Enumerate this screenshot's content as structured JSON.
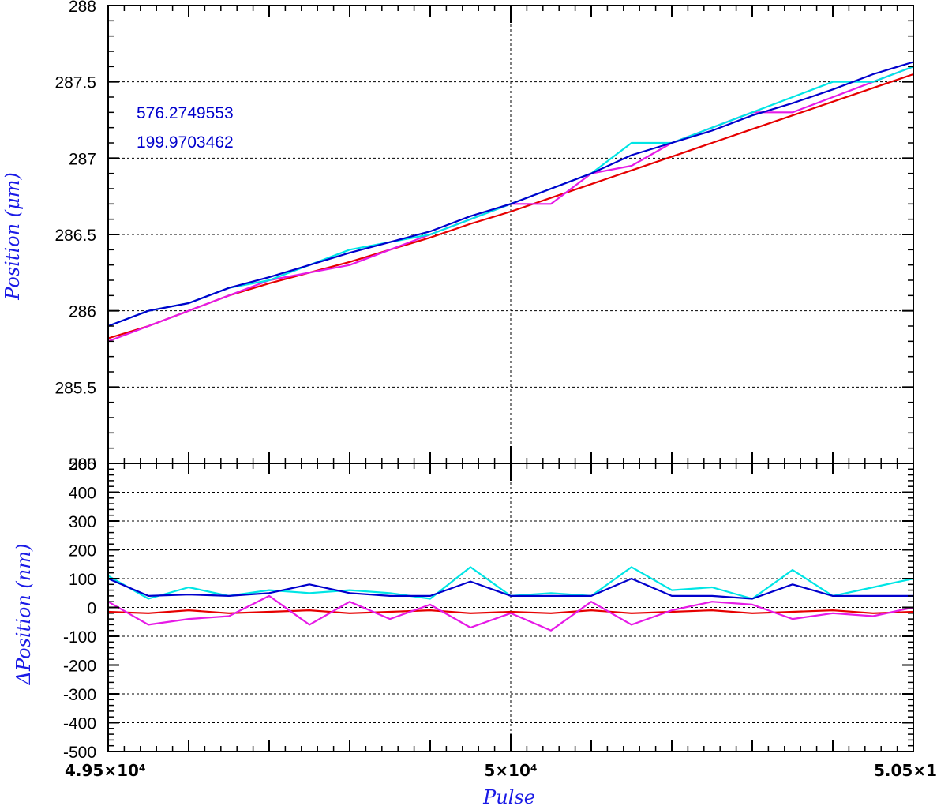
{
  "chart_data": [
    {
      "type": "line",
      "panel": "top",
      "ylabel": "Position (μm)",
      "ylim": [
        285,
        288
      ],
      "yticks": [
        "285",
        "285.5",
        "286",
        "286.5",
        "287",
        "287.5",
        "288"
      ],
      "xlim": [
        49500,
        50500
      ],
      "grid": true,
      "annotations": [
        "576.2749553",
        "199.9703462"
      ],
      "colors": {
        "blue": "#0000cc",
        "cyan": "#00e5e5",
        "magenta": "#e61ae6",
        "red": "#e60000"
      },
      "series": [
        {
          "x": [
            49500,
            49550,
            49600,
            49650,
            49700,
            49750,
            49800,
            49850,
            49900,
            49950,
            50000,
            50050,
            50100,
            50150,
            50200,
            50250,
            50300,
            50350,
            50400,
            50450,
            50500
          ],
          "values": [
            285.9,
            286.0,
            286.05,
            286.15,
            286.22,
            286.3,
            286.38,
            286.45,
            286.52,
            286.62,
            286.7,
            286.8,
            286.9,
            287.02,
            287.1,
            287.18,
            287.28,
            287.36,
            287.45,
            287.55,
            287.63
          ]
        },
        {
          "x": [
            49500,
            49550,
            49600,
            49650,
            49700,
            49750,
            49800,
            49850,
            49900,
            49950,
            50000,
            50050,
            50100,
            50150,
            50200,
            50250,
            50300,
            50350,
            50400,
            50450,
            50500
          ],
          "values": [
            285.9,
            286.0,
            286.05,
            286.15,
            286.2,
            286.3,
            286.4,
            286.45,
            286.5,
            286.6,
            286.7,
            286.8,
            286.9,
            287.1,
            287.1,
            287.2,
            287.3,
            287.4,
            287.5,
            287.5,
            287.6
          ]
        },
        {
          "x": [
            49500,
            49550,
            49600,
            49650,
            49700,
            49750,
            49800,
            49850,
            49900,
            49950,
            50000,
            50050,
            50100,
            50150,
            50200,
            50250,
            50300,
            50350,
            50400,
            50450,
            50500
          ],
          "values": [
            285.8,
            285.9,
            286.0,
            286.1,
            286.2,
            286.25,
            286.3,
            286.4,
            286.5,
            286.6,
            286.7,
            286.7,
            286.9,
            286.95,
            287.1,
            287.2,
            287.3,
            287.3,
            287.4,
            287.5,
            287.6
          ]
        },
        {
          "x": [
            49500,
            49550,
            49600,
            49650,
            49700,
            49750,
            49800,
            49850,
            49900,
            49950,
            50000,
            50050,
            50100,
            50150,
            50200,
            50250,
            50300,
            50350,
            50400,
            50450,
            50500
          ],
          "values": [
            285.82,
            285.9,
            286.0,
            286.1,
            286.18,
            286.25,
            286.32,
            286.4,
            286.48,
            286.57,
            286.65,
            286.74,
            286.83,
            286.92,
            287.01,
            287.1,
            287.19,
            287.28,
            287.37,
            287.46,
            287.55
          ]
        }
      ]
    },
    {
      "type": "line",
      "panel": "bottom",
      "ylabel": "ΔPosition (nm)",
      "xlabel": "Pulse",
      "ylim": [
        -500,
        500
      ],
      "yticks": [
        "-500",
        "-400",
        "-300",
        "-200",
        "-100",
        "0",
        "100",
        "200",
        "300",
        "400",
        "500"
      ],
      "xlim": [
        49500,
        50500
      ],
      "xticks": [
        "4.95×10⁴",
        "5×10⁴",
        "5.05×1"
      ],
      "grid": true,
      "series": [
        {
          "x": [
            49500,
            49550,
            49600,
            49650,
            49700,
            49750,
            49800,
            49850,
            49900,
            49950,
            50000,
            50050,
            50100,
            50150,
            50200,
            50250,
            50300,
            50350,
            50400,
            50450,
            50500
          ],
          "values": [
            100,
            40,
            45,
            40,
            50,
            80,
            50,
            40,
            40,
            90,
            40,
            40,
            40,
            100,
            40,
            40,
            30,
            80,
            40,
            40,
            40
          ]
        },
        {
          "x": [
            49500,
            49550,
            49600,
            49650,
            49700,
            49750,
            49800,
            49850,
            49900,
            49950,
            50000,
            50050,
            50100,
            50150,
            50200,
            50250,
            50300,
            50350,
            50400,
            50450,
            50500
          ],
          "values": [
            110,
            30,
            70,
            40,
            60,
            50,
            60,
            50,
            30,
            140,
            40,
            50,
            40,
            140,
            60,
            70,
            30,
            130,
            40,
            70,
            100
          ]
        },
        {
          "x": [
            49500,
            49550,
            49600,
            49650,
            49700,
            49750,
            49800,
            49850,
            49900,
            49950,
            50000,
            50050,
            50100,
            50150,
            50200,
            50250,
            50300,
            50350,
            50400,
            50450,
            50500
          ],
          "values": [
            20,
            -60,
            -40,
            -30,
            40,
            -60,
            20,
            -40,
            10,
            -70,
            -20,
            -80,
            20,
            -60,
            -10,
            20,
            10,
            -40,
            -20,
            -30,
            0
          ]
        },
        {
          "x": [
            49500,
            49550,
            49600,
            49650,
            49700,
            49750,
            49800,
            49850,
            49900,
            49950,
            50000,
            50050,
            50100,
            50150,
            50200,
            50250,
            50300,
            50350,
            50400,
            50450,
            50500
          ],
          "values": [
            -15,
            -20,
            -10,
            -20,
            -15,
            -10,
            -20,
            -15,
            -10,
            -20,
            -15,
            -20,
            -10,
            -20,
            -15,
            -10,
            -20,
            -15,
            -10,
            -20,
            -15
          ]
        }
      ]
    }
  ]
}
